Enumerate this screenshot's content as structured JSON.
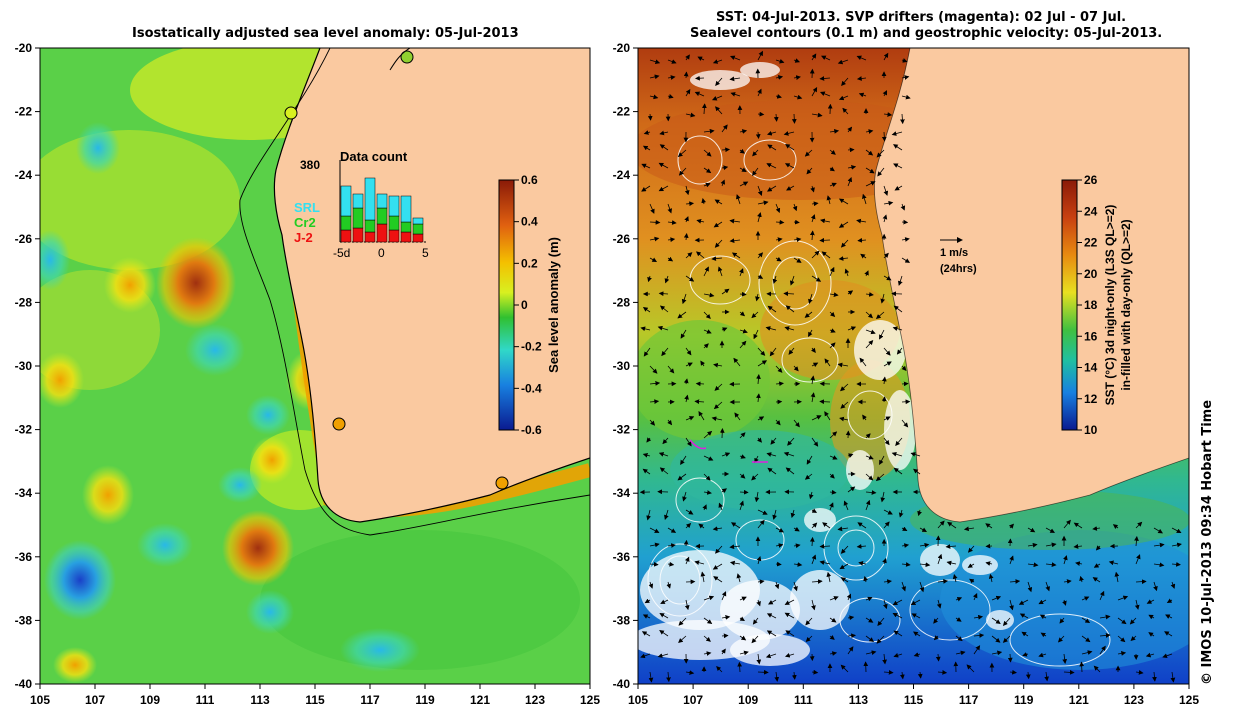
{
  "left_panel": {
    "title": "Isostatically adjusted sea level anomaly: 05-Jul-2013",
    "colorbar": {
      "label": "Sea level anomaly (m)",
      "ticks": [
        "0.6",
        "0.4",
        "0.2",
        "0",
        "-0.2",
        "-0.4",
        "-0.6"
      ]
    },
    "data_count": {
      "title": "Data count",
      "max_label": "380",
      "legend": [
        "SRL",
        "Cr2",
        "J-2"
      ],
      "legend_colors": [
        "#33e0f0",
        "#22cc22",
        "#ee1111"
      ],
      "x_labels": [
        "-5d",
        "0",
        "5"
      ]
    }
  },
  "right_panel": {
    "title_line1": "SST: 04-Jul-2013. SVP drifters (magenta): 02 Jul - 07 Jul.",
    "title_line2": "Sealevel contours (0.1 m) and geostrophic velocity: 05-Jul-2013.",
    "colorbar": {
      "label_line1": "SST (°C) 3d night-only (L3S QL>=2)",
      "label_line2": "in-filled with day-only (QL>=2)",
      "ticks": [
        "26",
        "24",
        "22",
        "20",
        "18",
        "16",
        "14",
        "12",
        "10"
      ]
    },
    "velocity_legend": {
      "label": "1 m/s",
      "sublabel": "(24hrs)"
    }
  },
  "axes": {
    "x_ticks": [
      "105",
      "107",
      "109",
      "111",
      "113",
      "115",
      "117",
      "119",
      "121",
      "123",
      "125"
    ],
    "y_ticks": [
      "-20",
      "-22",
      "-24",
      "-26",
      "-28",
      "-30",
      "-32",
      "-34",
      "-36",
      "-38",
      "-40"
    ]
  },
  "credit": "© IMOS 10-Jul-2013 09:34 Hobart Time",
  "colors": {
    "land": "#fac9a0",
    "coast_line": "#000000"
  }
}
